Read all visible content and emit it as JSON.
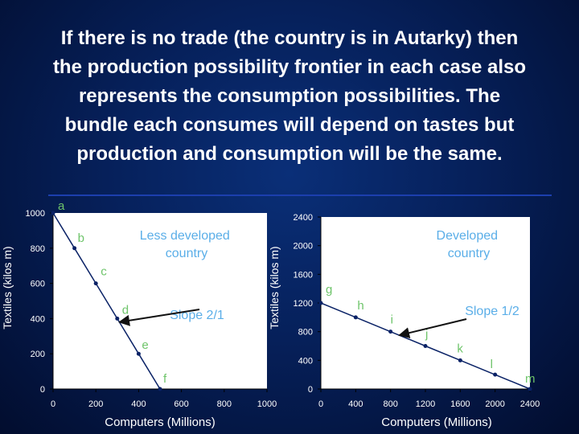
{
  "slide": {
    "title": "If there is no trade (the country is in Autarky) then\nthe production possibility frontier in each case also\nrepresents the consumption possibilities. The\nbundle each consumes will depend on tastes but\nproduction and consumption will be the same."
  },
  "colors": {
    "background": "#06205a",
    "plot_background": "#ffffff",
    "line": "#0a2266",
    "point_label": "#6ec46a",
    "annotation_text": "#5aaee8",
    "arrow": "#111111"
  },
  "chart_data": [
    {
      "type": "line",
      "xlabel": "Computers (Millions)",
      "ylabel": "Textiles (kilos m)",
      "xlim": [
        0,
        1000
      ],
      "ylim": [
        0,
        1000
      ],
      "xticks": [
        0,
        200,
        400,
        600,
        800,
        1000
      ],
      "yticks": [
        0,
        200,
        400,
        600,
        800,
        1000
      ],
      "series": [
        {
          "x": [
            0,
            100,
            200,
            300,
            400,
            500
          ],
          "y": [
            1000,
            800,
            600,
            400,
            200,
            0
          ]
        }
      ],
      "points": [
        {
          "label": "a",
          "x": 0,
          "y": 1000
        },
        {
          "label": "b",
          "x": 100,
          "y": 800
        },
        {
          "label": "c",
          "x": 200,
          "y": 600
        },
        {
          "label": "d",
          "x": 300,
          "y": 400
        },
        {
          "label": "e",
          "x": 400,
          "y": 200
        },
        {
          "label": "f",
          "x": 500,
          "y": 0
        }
      ],
      "annotations": [
        {
          "text": "Less developed\ncountry"
        },
        {
          "text": "Slope 2/1",
          "arrow_to": [
            310,
            380
          ]
        }
      ],
      "grid": false
    },
    {
      "type": "line",
      "xlabel": "Computers (Millions)",
      "ylabel": "Textiles (kilos m)",
      "xlim": [
        0,
        2400
      ],
      "ylim": [
        0,
        2400
      ],
      "xticks": [
        0,
        400,
        800,
        1200,
        1600,
        2000,
        2400
      ],
      "yticks": [
        0,
        400,
        800,
        1200,
        1600,
        2000,
        2400
      ],
      "series": [
        {
          "x": [
            0,
            400,
            800,
            1200,
            1600,
            2000,
            2400
          ],
          "y": [
            1200,
            1000,
            800,
            600,
            400,
            200,
            0
          ]
        }
      ],
      "points": [
        {
          "label": "g",
          "x": 0,
          "y": 1200
        },
        {
          "label": "h",
          "x": 400,
          "y": 1000
        },
        {
          "label": "i",
          "x": 800,
          "y": 800
        },
        {
          "label": "j",
          "x": 1200,
          "y": 600
        },
        {
          "label": "k",
          "x": 1600,
          "y": 400
        },
        {
          "label": "l",
          "x": 2000,
          "y": 200
        },
        {
          "label": "m",
          "x": 2400,
          "y": 0
        }
      ],
      "annotations": [
        {
          "text": "Developed\ncountry"
        },
        {
          "text": "Slope 1/2",
          "arrow_to": [
            900,
            750
          ]
        }
      ],
      "grid": false
    }
  ]
}
